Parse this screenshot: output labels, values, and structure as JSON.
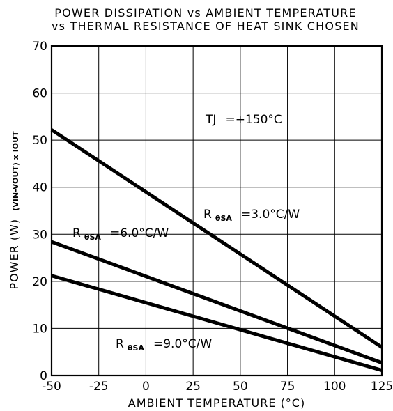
{
  "chart_data": {
    "type": "line",
    "title": "POWER DISSIPATION vs AMBIENT TEMPERATURE",
    "subtitle": "vs THERMAL RESISTANCE OF HEAT SINK CHOSEN",
    "xlabel": "AMBIENT TEMPERATURE (°C)",
    "ylabel": {
      "main": "POWER (W)",
      "qualifier": "(VIN-VOUT) x IOUT"
    },
    "xlim": [
      -50,
      125
    ],
    "ylim": [
      0,
      70
    ],
    "x_ticks": [
      "-50",
      "-25",
      "0",
      "25",
      "50",
      "75",
      "100",
      "125"
    ],
    "y_ticks": [
      "0",
      "10",
      "20",
      "30",
      "40",
      "50",
      "60",
      "70"
    ],
    "grid": true,
    "series": [
      {
        "name": "RθSA = 3.0°C/W",
        "x": [
          -50,
          125
        ],
        "y": [
          52.2,
          6.0
        ]
      },
      {
        "name": "RθSA = 6.0°C/W",
        "x": [
          -50,
          125
        ],
        "y": [
          28.4,
          2.7
        ]
      },
      {
        "name": "RθSA = 9.0°C/W",
        "x": [
          -50,
          125
        ],
        "y": [
          21.2,
          1.1
        ]
      }
    ],
    "annotations": {
      "tj": {
        "main": "TJ",
        "value": "=+150°C"
      },
      "labels": [
        {
          "r": "R",
          "sub": "θSA",
          "value": "=3.0°C/W"
        },
        {
          "r": "R",
          "sub": "θSA",
          "value": "=6.0°C/W"
        },
        {
          "r": "R",
          "sub": "θSA",
          "value": "=9.0°C/W"
        }
      ]
    }
  }
}
